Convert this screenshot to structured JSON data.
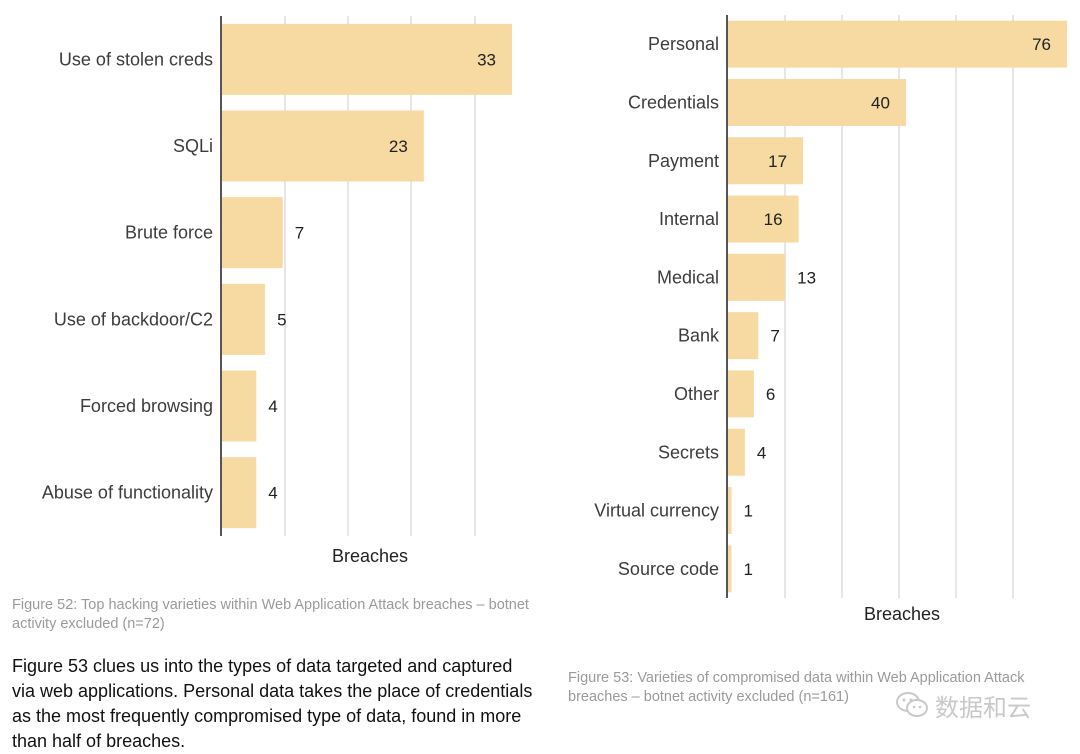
{
  "chart_data": [
    {
      "type": "bar",
      "orientation": "horizontal",
      "categories": [
        "Use of stolen creds",
        "SQLi",
        "Brute force",
        "Use of backdoor/C2",
        "Forced browsing",
        "Abuse of functionality"
      ],
      "values": [
        33,
        23,
        7,
        5,
        4,
        4
      ],
      "xlabel": "Breaches",
      "ylabel": "",
      "xlim": [
        0,
        35
      ],
      "grid": true,
      "bar_color": "#f7d9a2"
    },
    {
      "type": "bar",
      "orientation": "horizontal",
      "categories": [
        "Personal",
        "Credentials",
        "Payment",
        "Internal",
        "Medical",
        "Bank",
        "Other",
        "Secrets",
        "Virtual currency",
        "Source code"
      ],
      "values": [
        76,
        40,
        17,
        16,
        13,
        7,
        6,
        4,
        1,
        1
      ],
      "xlabel": "Breaches",
      "ylabel": "",
      "xlim": [
        0,
        78
      ],
      "grid": true,
      "bar_color": "#f7d9a2"
    }
  ],
  "captions": {
    "figure52": "Figure 52: Top hacking varieties within Web Application Attack breaches – botnet activity excluded (n=72)",
    "figure53": "Figure 53: Varieties of compromised data within Web Application Attack breaches – botnet activity excluded (n=161)"
  },
  "body_text": "Figure 53 clues us into the types of data targeted and captured via web applications. Personal data takes the place of credentials as the most frequently compromised type of data, found in more than half of breaches.",
  "watermark": {
    "icon": "wechat-icon",
    "text": "数据和云"
  }
}
